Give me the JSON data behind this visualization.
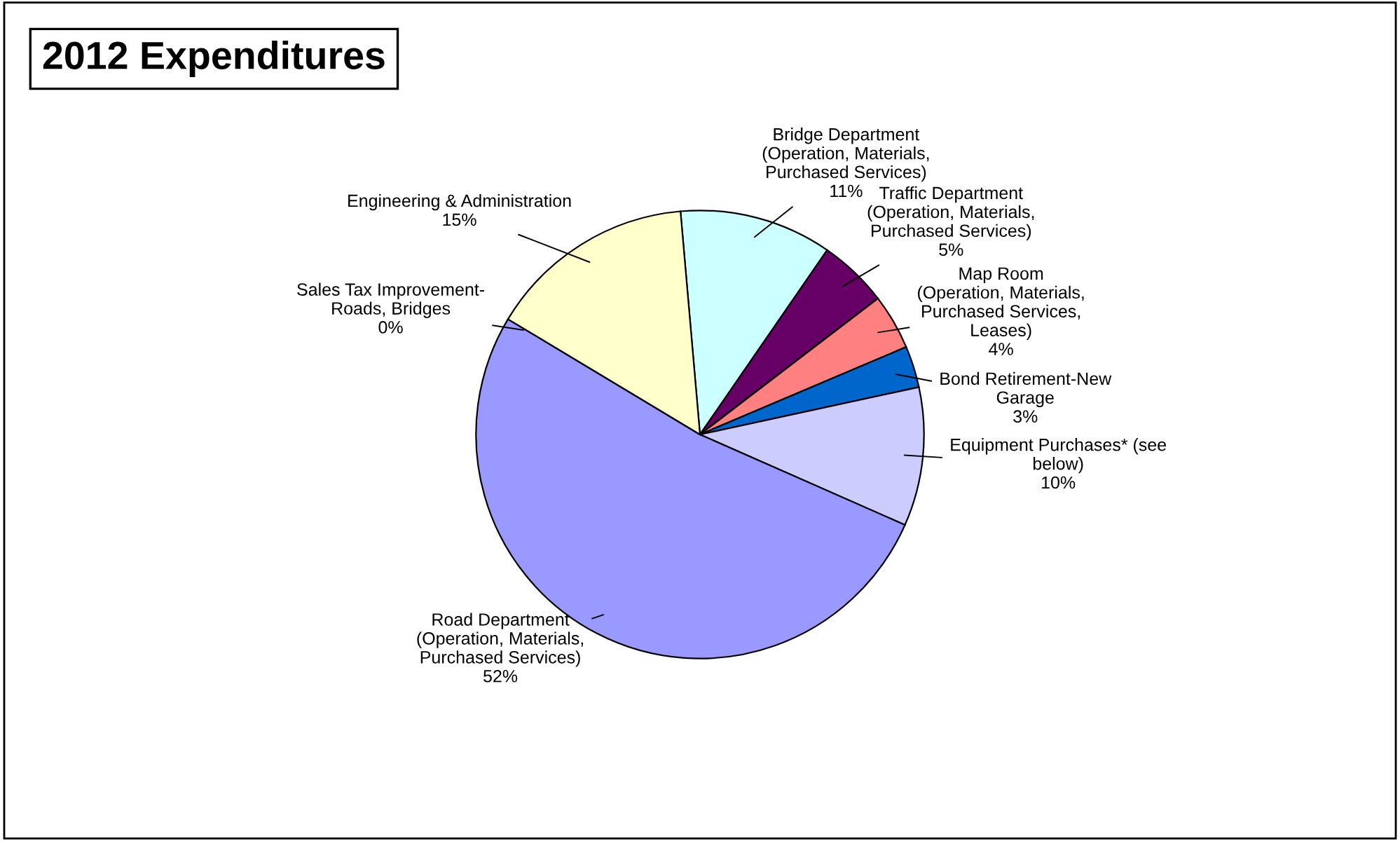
{
  "chart_data": {
    "type": "pie",
    "title": "2012 Expenditures",
    "categories": [
      "Bridge Department\n(Operation, Materials,\nPurchased Services)",
      "Traffic Department\n(Operation, Materials,\nPurchased Services)",
      "Map Room\n(Operation, Materials,\nPurchased Services,\nLeases)",
      "Bond Retirement-New\nGarage",
      "Equipment Purchases* (see\nbelow)",
      "Road Department\n(Operation, Materials,\nPurchased Services)",
      "Sales Tax Improvement-\nRoads, Bridges",
      "Engineering & Administration"
    ],
    "values": [
      11,
      5,
      4,
      3,
      10,
      52,
      0,
      15
    ],
    "value_labels": [
      "11%",
      "5%",
      "4%",
      "3%",
      "10%",
      "52%",
      "0%",
      "15%"
    ],
    "colors": [
      "#ccffff",
      "#660066",
      "#ff8080",
      "#0066cc",
      "#ccccff",
      "#9999ff",
      "#993366",
      "#ffffcc"
    ]
  }
}
